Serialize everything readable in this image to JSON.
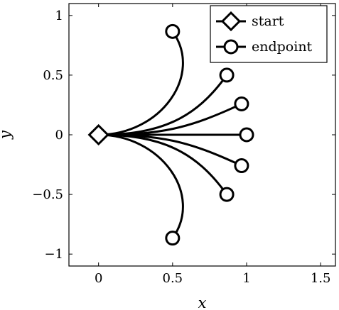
{
  "chart_data": {
    "type": "line",
    "title": "",
    "xlabel": "x",
    "ylabel": "y",
    "xlim": [
      -0.2,
      1.6
    ],
    "ylim": [
      -1.1,
      1.1
    ],
    "x_ticks": [
      0,
      0.5,
      1,
      1.5
    ],
    "x_tick_labels": [
      "0",
      "0.5",
      "1",
      "1.5"
    ],
    "y_ticks": [
      -1,
      -0.5,
      0,
      0.5,
      1
    ],
    "y_tick_labels": [
      "−1",
      "−0.5",
      "0",
      "0.5",
      "1"
    ],
    "grid": false,
    "legend_position": "top-right",
    "legend": [
      {
        "label": "start",
        "marker": "diamond"
      },
      {
        "label": "endpoint",
        "marker": "circle"
      }
    ],
    "start_point": {
      "x": 0,
      "y": 0
    },
    "endpoints": [
      {
        "x": 0.5,
        "y": 0.866
      },
      {
        "x": 0.866,
        "y": 0.5
      },
      {
        "x": 0.966,
        "y": 0.259
      },
      {
        "x": 1.0,
        "y": 0.0
      },
      {
        "x": 0.966,
        "y": -0.259
      },
      {
        "x": 0.866,
        "y": -0.5
      },
      {
        "x": 0.5,
        "y": -0.866
      }
    ],
    "line_color": "#000000"
  }
}
